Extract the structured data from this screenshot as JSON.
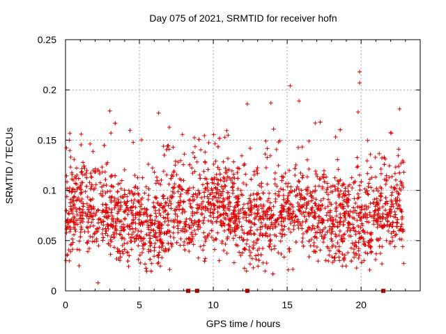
{
  "chart_data": {
    "type": "scatter",
    "title": "Day 075 of 2021, SRMTID for receiver hofn",
    "xlabel": "GPS time / hours",
    "ylabel": "SRMTID / TECUs",
    "xlim": [
      0,
      24
    ],
    "ylim": [
      0,
      0.25
    ],
    "xticks": [
      0,
      5,
      10,
      15,
      20
    ],
    "xtick_labels": [
      "0",
      "5",
      "10",
      "15",
      "20"
    ],
    "yticks": [
      0,
      0.05,
      0.1,
      0.15,
      0.2,
      0.25
    ],
    "ytick_labels": [
      "0",
      "0.05",
      "0.1",
      "0.15",
      "0.2",
      "0.25"
    ],
    "grid": true,
    "marker": "plus",
    "color": "#e00000",
    "x_data_range": [
      0,
      22.9
    ],
    "typical_band": [
      0.03,
      0.12
    ],
    "notable_points": [
      {
        "x": 19.9,
        "y": 0.218
      },
      {
        "x": 19.9,
        "y": 0.207
      },
      {
        "x": 15.2,
        "y": 0.204
      },
      {
        "x": 15.8,
        "y": 0.189
      },
      {
        "x": 12.3,
        "y": 0.186
      },
      {
        "x": 13.9,
        "y": 0.187
      },
      {
        "x": 22.6,
        "y": 0.181
      },
      {
        "x": 3.0,
        "y": 0.179
      },
      {
        "x": 6.3,
        "y": 0.177
      },
      {
        "x": 19.8,
        "y": 0.178
      },
      {
        "x": 16.9,
        "y": 0.167
      },
      {
        "x": 2.2,
        "y": 0.008
      }
    ],
    "missing_data_markers_x": [
      8.3,
      8.9,
      12.3,
      21.5
    ]
  }
}
